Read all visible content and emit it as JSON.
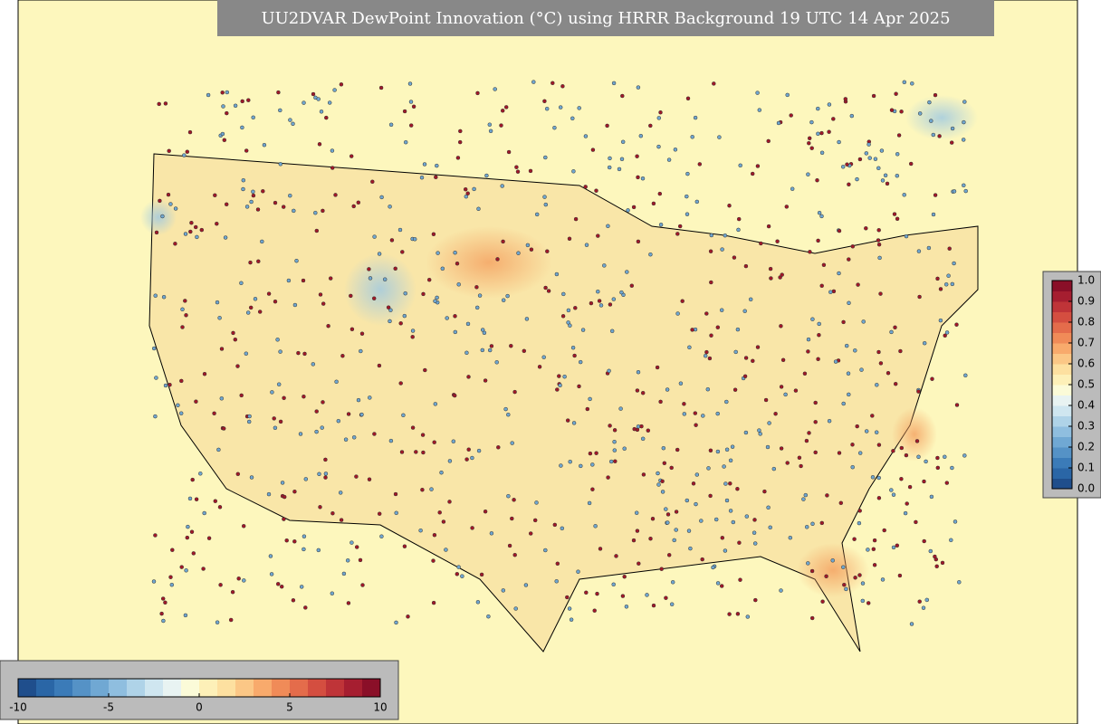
{
  "title": "UU2DVAR DewPoint Innovation (°C) using HRRR Background 19 UTC 14 Apr 2025",
  "colorbar_bottom": {
    "lim": [
      -10,
      10
    ],
    "ticks": [
      -10,
      -5,
      0,
      5,
      10
    ]
  },
  "colorbar_right": {
    "lim": [
      0,
      1
    ],
    "ticks": [
      {
        "value": 0,
        "label": "0.0"
      },
      {
        "value": 0.1,
        "label": "0.1"
      },
      {
        "value": 0.2,
        "label": "0.2"
      },
      {
        "value": 0.3,
        "label": "0.3"
      },
      {
        "value": 0.4,
        "label": "0.4"
      },
      {
        "value": 0.5,
        "label": "0.5"
      },
      {
        "value": 0.6,
        "label": "0.6"
      },
      {
        "value": 0.7,
        "label": "0.7"
      },
      {
        "value": 0.8,
        "label": "0.8"
      },
      {
        "value": 0.9,
        "label": "0.9"
      },
      {
        "value": 1,
        "label": "1.0"
      }
    ]
  }
}
